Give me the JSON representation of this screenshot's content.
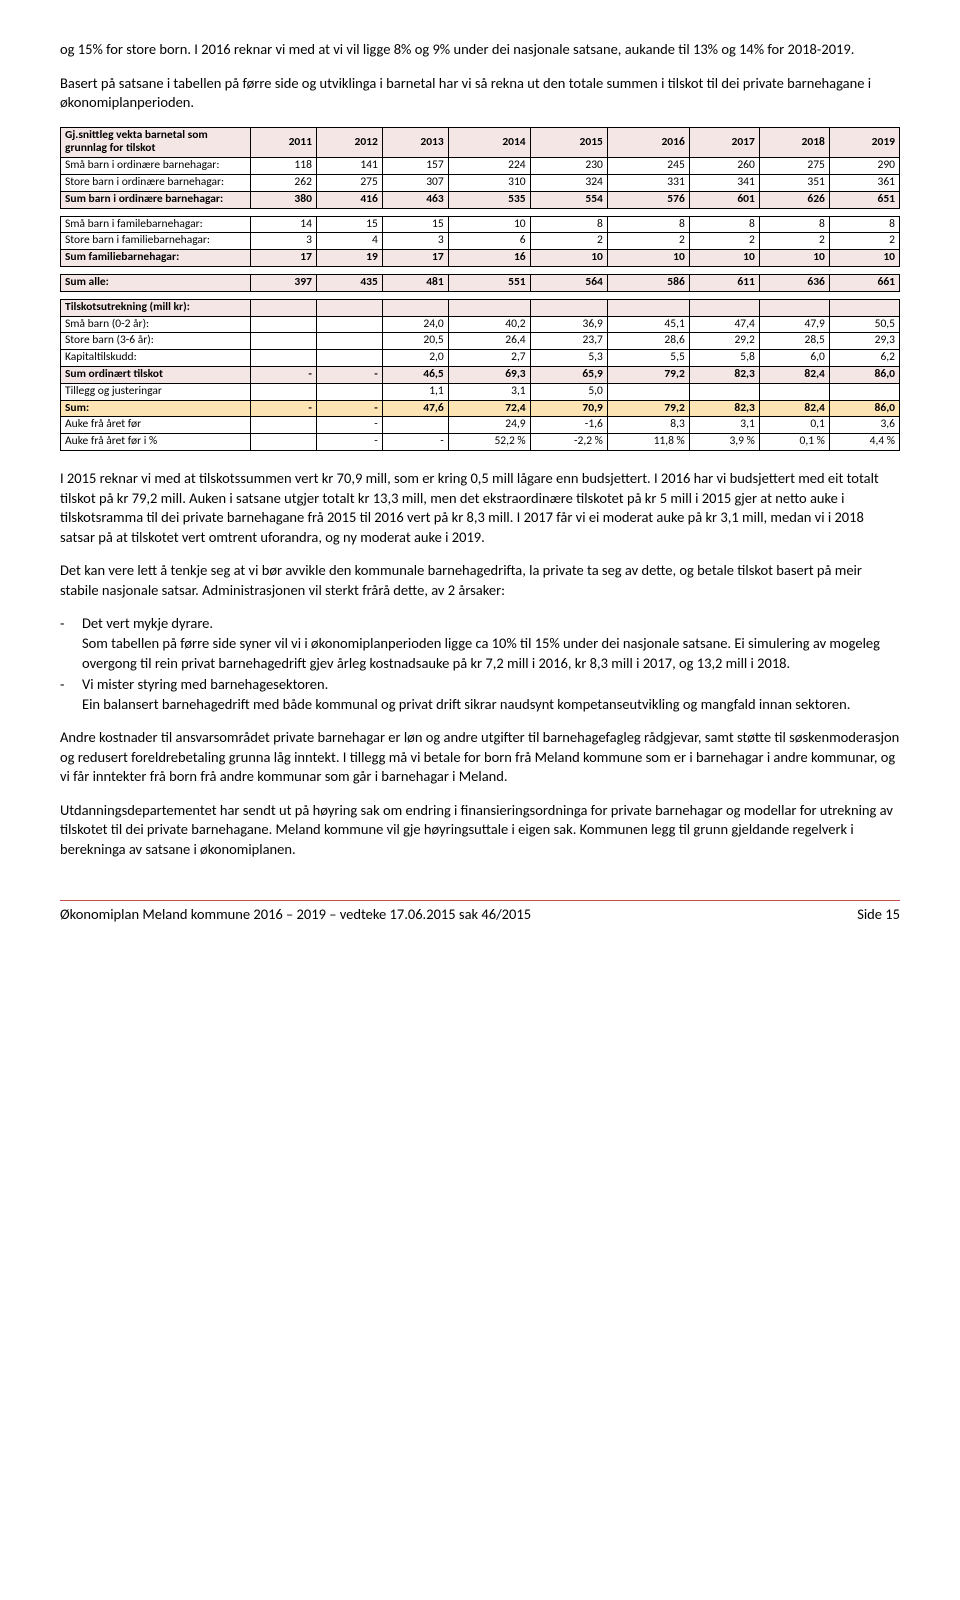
{
  "para1": "og 15% for store born. I 2016 reknar vi med at vi vil ligge 8% og 9% under dei nasjonale satsane, aukande til 13% og 14% for 2018-2019.",
  "para2": "Basert på satsane i tabellen på førre side og utviklinga i barnetal har vi så rekna ut den totale summen i tilskot til dei private barnehagane i økonomiplanperioden.",
  "table": {
    "header_label": "Gj.snittleg vekta barnetal som grunnlag for tilskot",
    "years": [
      "2011",
      "2012",
      "2013",
      "2014",
      "2015",
      "2016",
      "2017",
      "2018",
      "2019"
    ],
    "rows1": [
      {
        "label": "Små barn i ordinære barnehagar:",
        "vals": [
          "118",
          "141",
          "157",
          "224",
          "230",
          "245",
          "260",
          "275",
          "290"
        ]
      },
      {
        "label": "Store barn i ordinære barnehagar:",
        "vals": [
          "262",
          "275",
          "307",
          "310",
          "324",
          "331",
          "341",
          "351",
          "361"
        ]
      }
    ],
    "sum1": {
      "label": "Sum barn i ordinære barnehagar:",
      "vals": [
        "380",
        "416",
        "463",
        "535",
        "554",
        "576",
        "601",
        "626",
        "651"
      ]
    },
    "rows2": [
      {
        "label": "Små barn i familebarnehagar:",
        "vals": [
          "14",
          "15",
          "15",
          "10",
          "8",
          "8",
          "8",
          "8",
          "8"
        ]
      },
      {
        "label": "Store barn i familiebarnehagar:",
        "vals": [
          "3",
          "4",
          "3",
          "6",
          "2",
          "2",
          "2",
          "2",
          "2"
        ]
      }
    ],
    "sum2": {
      "label": "Sum familiebarnehagar:",
      "vals": [
        "17",
        "19",
        "17",
        "16",
        "10",
        "10",
        "10",
        "10",
        "10"
      ]
    },
    "sum_alle": {
      "label": "Sum alle:",
      "vals": [
        "397",
        "435",
        "481",
        "551",
        "564",
        "586",
        "611",
        "636",
        "661"
      ]
    },
    "section2_hdr": "Tilskotsutrekning (mill kr):",
    "rows3": [
      {
        "label": "Små barn (0-2 år):",
        "vals": [
          "",
          "",
          "24,0",
          "40,2",
          "36,9",
          "45,1",
          "47,4",
          "47,9",
          "50,5"
        ]
      },
      {
        "label": "Store barn (3-6 år):",
        "vals": [
          "",
          "",
          "20,5",
          "26,4",
          "23,7",
          "28,6",
          "29,2",
          "28,5",
          "29,3"
        ]
      },
      {
        "label": "Kapitaltilskudd:",
        "vals": [
          "",
          "",
          "2,0",
          "2,7",
          "5,3",
          "5,5",
          "5,8",
          "6,0",
          "6,2"
        ]
      }
    ],
    "sum3": {
      "label": "Sum ordinært tilskot",
      "vals": [
        "-",
        "-",
        "46,5",
        "69,3",
        "65,9",
        "79,2",
        "82,3",
        "82,4",
        "86,0"
      ]
    },
    "rows4": [
      {
        "label": "Tillegg og justeringar",
        "vals": [
          "",
          "",
          "1,1",
          "3,1",
          "5,0",
          "",
          "",
          "",
          ""
        ]
      }
    ],
    "total": {
      "label": "Sum:",
      "vals": [
        "-",
        "-",
        "47,6",
        "72,4",
        "70,9",
        "79,2",
        "82,3",
        "82,4",
        "86,0"
      ]
    },
    "rows5": [
      {
        "label": "Auke frå året før",
        "vals": [
          "",
          "-",
          "",
          "24,9",
          "-1,6",
          "8,3",
          "3,1",
          "0,1",
          "3,6"
        ]
      },
      {
        "label": "Auke frå året før i %",
        "vals": [
          "",
          "-",
          "-",
          "52,2 %",
          "-2,2 %",
          "11,8 %",
          "3,9 %",
          "0,1 %",
          "4,4 %"
        ]
      }
    ]
  },
  "para3": "I 2015 reknar vi med at tilskotssummen vert kr 70,9 mill, som er kring 0,5 mill lågare enn budsjettert. I 2016 har vi budsjettert med eit totalt tilskot på kr 79,2 mill. Auken i satsane utgjer totalt kr 13,3 mill, men det ekstraordinære tilskotet på kr 5 mill i 2015 gjer at netto auke i tilskotsramma til dei private barnehagane frå 2015 til 2016 vert på kr 8,3 mill. I 2017 får vi ei moderat auke på kr 3,1 mill, medan vi i 2018 satsar på at tilskotet vert omtrent uforandra, og ny moderat auke i 2019.",
  "para4": "Det kan vere lett å tenkje seg at vi bør avvikle den kommunale barnehagedrifta, la private ta seg av dette, og betale tilskot basert på meir stabile nasjonale satsar. Administrasjonen vil sterkt frårå dette, av 2 årsaker:",
  "bullets": [
    {
      "head": "Det vert mykje dyrare.",
      "body": "Som tabellen på førre side syner vil vi i økonomiplanperioden ligge ca 10% til 15% under dei nasjonale satsane. Ei simulering av mogeleg overgong til rein privat barnehagedrift gjev årleg kostnadsauke på kr 7,2 mill i 2016, kr 8,3 mill i 2017, og 13,2 mill i 2018."
    },
    {
      "head": "Vi mister styring med barnehagesektoren.",
      "body": "Ein balansert barnehagedrift med både kommunal og privat drift sikrar naudsynt kompetanseutvikling og mangfald innan sektoren."
    }
  ],
  "para5": "Andre kostnader til ansvarsområdet private barnehagar er løn og andre utgifter til barnehagefagleg rådgjevar, samt støtte til søskenmoderasjon og redusert foreldrebetaling grunna låg inntekt. I tillegg må vi betale for born frå Meland kommune som er i barnehagar i andre kommunar, og vi får inntekter frå born frå andre kommunar som går i barnehagar i Meland.",
  "para6": "Utdanningsdepartementet har sendt ut på høyring sak om endring i finansieringsordninga for private barnehagar og modellar for utrekning av tilskotet til dei private barnehagane. Meland kommune vil gje høyringsuttale i eigen sak. Kommunen legg til grunn gjeldande regelverk i berekninga av satsane i økonomiplanen.",
  "footer_left": "Økonomiplan Meland kommune 2016 – 2019 – vedteke 17.06.2015 sak 46/2015",
  "footer_right": "Side 15"
}
